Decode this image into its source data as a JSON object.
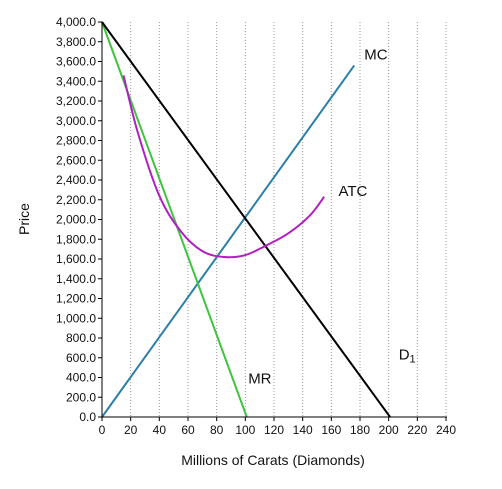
{
  "chart_data": {
    "type": "line",
    "xlabel": "Millions of Carats (Diamonds)",
    "ylabel": "Price",
    "xlim": [
      0,
      240
    ],
    "ylim": [
      0,
      4000
    ],
    "x_ticks": [
      0,
      20,
      40,
      60,
      80,
      100,
      120,
      140,
      160,
      180,
      200,
      220,
      240
    ],
    "x_tick_labels": [
      "0",
      "20",
      "40",
      "60",
      "80",
      "100",
      "120",
      "140",
      "160",
      "180",
      "200",
      "220",
      "240"
    ],
    "y_ticks": [
      0,
      200,
      400,
      600,
      800,
      1000,
      1200,
      1400,
      1600,
      1800,
      2000,
      2200,
      2400,
      2600,
      2800,
      3000,
      3200,
      3400,
      3600,
      3800,
      4000
    ],
    "y_tick_labels": [
      "0.0",
      "200.0",
      "400.0",
      "600.0",
      "800.0",
      "1,000.0",
      "1,200.0",
      "1,400.0",
      "1,600.0",
      "1,800.0",
      "2,000.0",
      "2,200.0",
      "2,400.0",
      "2,600.0",
      "2,800.0",
      "3,000.0",
      "3,200.0",
      "3,400.0",
      "3,600.0",
      "3,800.0",
      "4,000.0"
    ],
    "grid": "vertical dotted",
    "series": [
      {
        "name": "MC",
        "color": "#2a7fa8",
        "x": [
          0,
          176
        ],
        "y": [
          0,
          3560
        ]
      },
      {
        "name": "MR",
        "color": "#3ec43e",
        "x": [
          0,
          101
        ],
        "y": [
          4000,
          0
        ]
      },
      {
        "name": "D1",
        "color": "#000000",
        "x": [
          0,
          201
        ],
        "y": [
          4000,
          0
        ]
      },
      {
        "name": "ATC",
        "color": "#b020c0",
        "x": [
          15,
          25,
          40,
          55,
          70,
          85,
          100,
          115,
          130,
          145,
          155
        ],
        "y": [
          3460,
          2880,
          2240,
          1880,
          1680,
          1620,
          1640,
          1740,
          1860,
          2040,
          2230
        ]
      }
    ],
    "annotations": [
      {
        "text": "MC",
        "x": 183,
        "y": 3620
      },
      {
        "text": "ATC",
        "x": 165,
        "y": 2240
      },
      {
        "text": "D",
        "sub": "1",
        "x": 207,
        "y": 580
      },
      {
        "text": "MR",
        "x": 102,
        "y": 340
      }
    ]
  }
}
